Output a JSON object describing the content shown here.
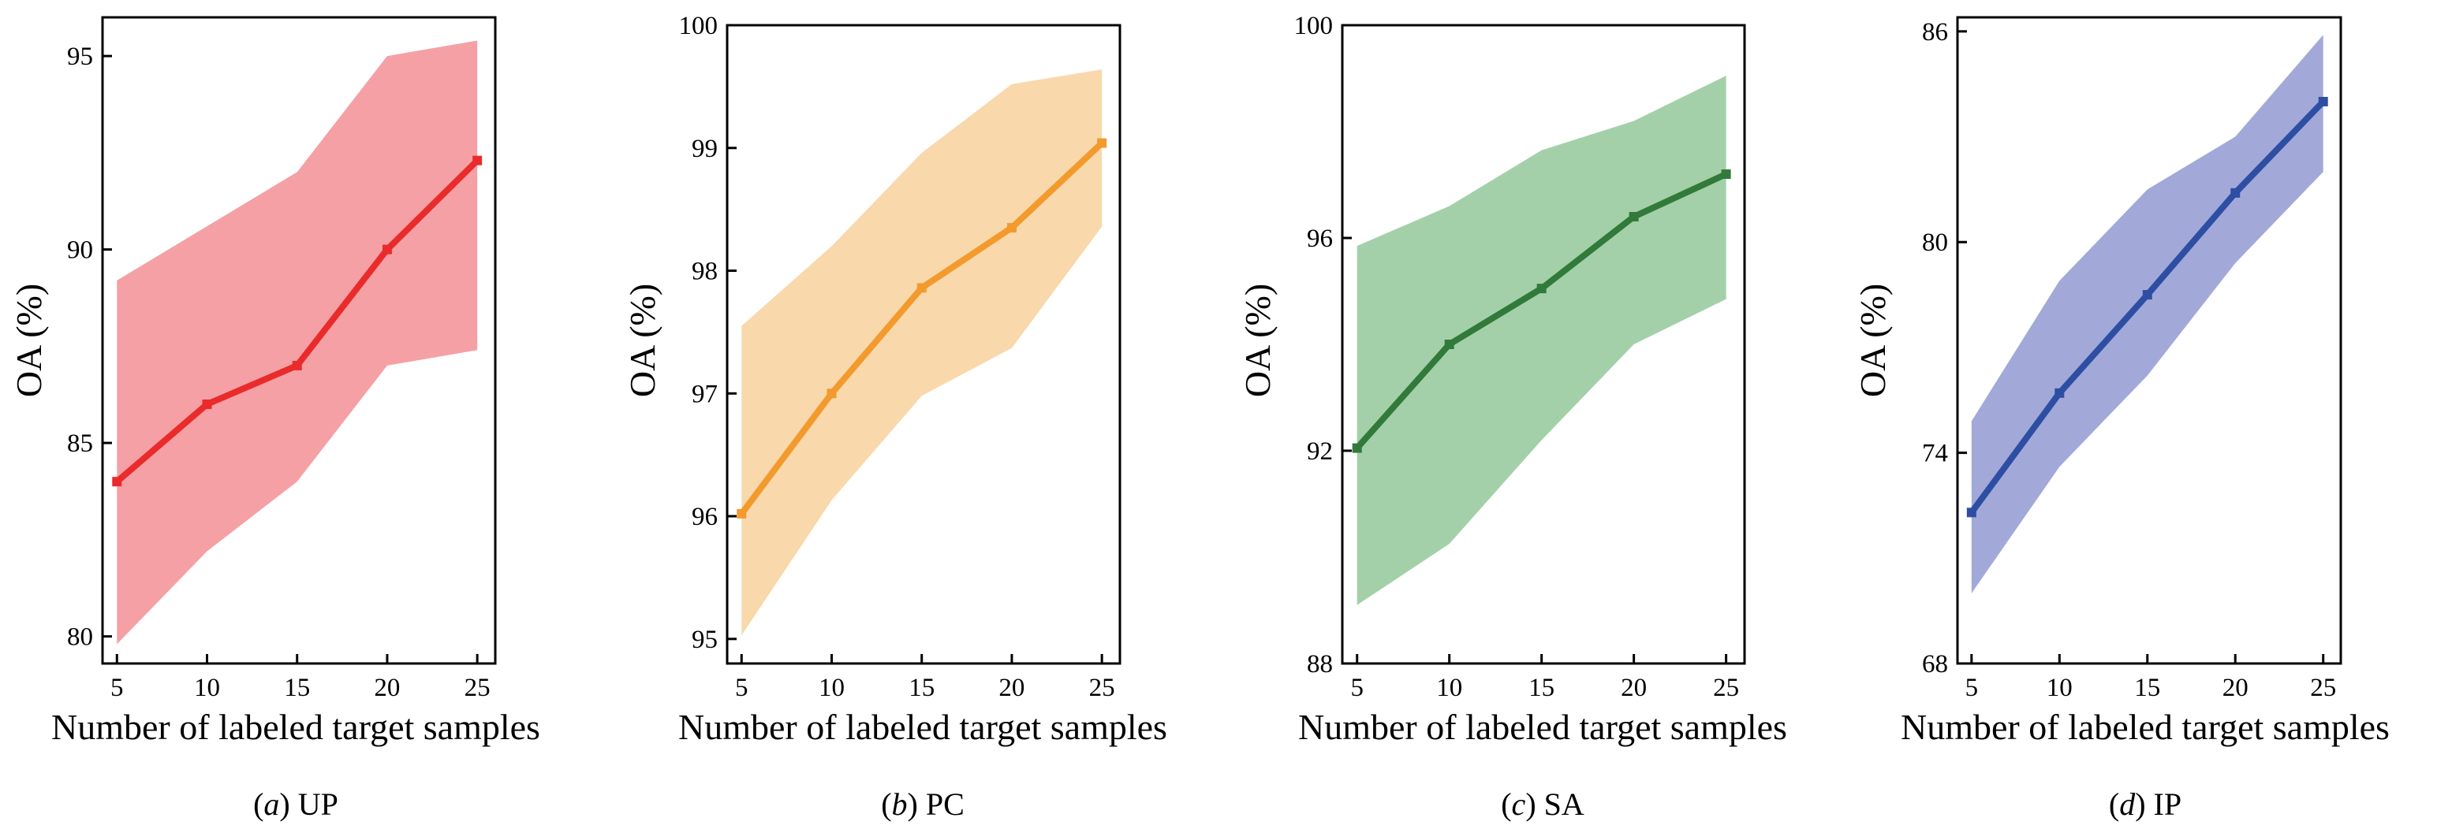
{
  "chart_data": [
    {
      "type": "line",
      "caption_letter": "a",
      "caption_name": "UP",
      "xlabel": "Number of labeled target samples",
      "ylabel": "OA (%)",
      "x": [
        5,
        10,
        15,
        20,
        25
      ],
      "xticks": [
        "5",
        "10",
        "15",
        "20",
        "25"
      ],
      "xlim": [
        4.2,
        26.0
      ],
      "ylim": [
        79.3,
        96.0
      ],
      "yticks": [
        80,
        85,
        90,
        95
      ],
      "series": [
        {
          "name": "UP",
          "values": [
            84.0,
            86.0,
            87.0,
            90.0,
            92.3
          ]
        }
      ],
      "band_upper": [
        89.2,
        90.6,
        92.0,
        95.0,
        95.4
      ],
      "band_lower": [
        79.8,
        82.2,
        84.0,
        87.0,
        87.4
      ],
      "line_color": "#ea2b2b",
      "band_color": "#f5a0a5"
    },
    {
      "type": "line",
      "caption_letter": "b",
      "caption_name": "PC",
      "xlabel": "Number of labeled target samples",
      "ylabel": "OA (%)",
      "x": [
        5,
        10,
        15,
        20,
        25
      ],
      "xticks": [
        "5",
        "10",
        "15",
        "20",
        "25"
      ],
      "xlim": [
        4.2,
        26.0
      ],
      "ylim": [
        94.8,
        100.0
      ],
      "yticks": [
        95,
        96,
        97,
        98,
        99,
        100
      ],
      "series": [
        {
          "name": "PC",
          "values": [
            96.02,
            97.0,
            97.86,
            98.35,
            99.04
          ]
        }
      ],
      "band_upper": [
        97.55,
        98.2,
        98.96,
        99.52,
        99.64
      ],
      "band_lower": [
        95.03,
        96.13,
        96.98,
        97.37,
        98.36
      ],
      "line_color": "#f39a2d",
      "band_color": "#f9d8ab"
    },
    {
      "type": "line",
      "caption_letter": "c",
      "caption_name": "SA",
      "xlabel": "Number of labeled target samples",
      "ylabel": "OA (%)",
      "x": [
        5,
        10,
        15,
        20,
        25
      ],
      "xticks": [
        "5",
        "10",
        "15",
        "20",
        "25"
      ],
      "xlim": [
        4.2,
        26.0
      ],
      "ylim": [
        88.0,
        100.0
      ],
      "yticks": [
        88,
        92,
        96,
        100
      ],
      "series": [
        {
          "name": "SA",
          "values": [
            92.05,
            94.0,
            95.05,
            96.4,
            97.2
          ]
        }
      ],
      "band_upper": [
        95.85,
        96.6,
        97.65,
        98.2,
        99.05
      ],
      "band_lower": [
        89.1,
        90.25,
        92.2,
        94.0,
        94.85
      ],
      "line_color": "#317a3a",
      "band_color": "#a3d0a9"
    },
    {
      "type": "line",
      "caption_letter": "d",
      "caption_name": "IP",
      "xlabel": "Number of labeled target samples",
      "ylabel": "OA (%)",
      "x": [
        5,
        10,
        15,
        20,
        25
      ],
      "xticks": [
        "5",
        "10",
        "15",
        "20",
        "25"
      ],
      "xlim": [
        4.2,
        26.0
      ],
      "ylim": [
        68.0,
        86.4
      ],
      "yticks": [
        68,
        74,
        80,
        86
      ],
      "series": [
        {
          "name": "IP",
          "values": [
            72.3,
            75.7,
            78.5,
            81.4,
            84.0
          ]
        }
      ],
      "band_upper": [
        74.9,
        78.9,
        81.5,
        83.0,
        85.9
      ],
      "band_lower": [
        70.0,
        73.6,
        76.2,
        79.4,
        82.0
      ],
      "line_color": "#2e4ea3",
      "band_color": "#a2a9d9"
    }
  ]
}
